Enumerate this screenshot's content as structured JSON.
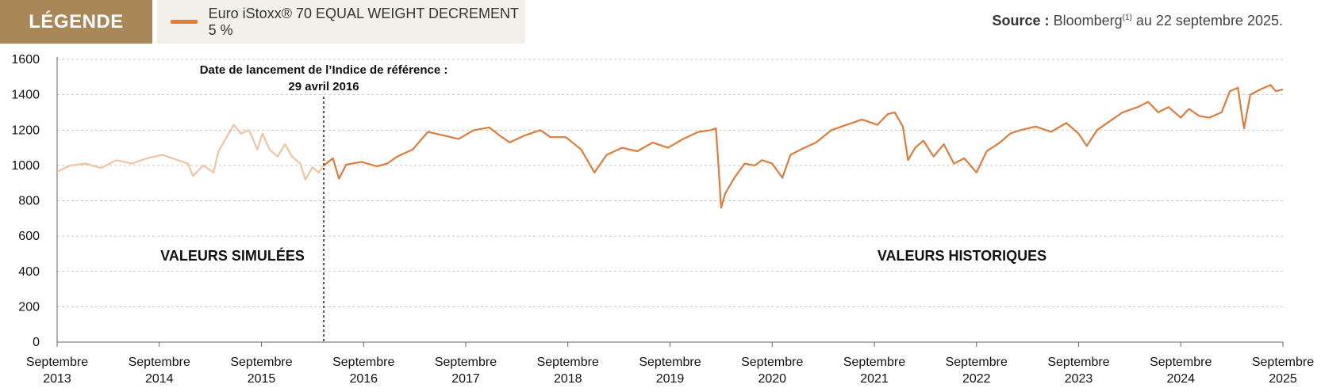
{
  "legend": {
    "tag": "LÉGENDE",
    "series_label": "Euro iStoxx® 70 EQUAL WEIGHT DECREMENT 5 %"
  },
  "source": {
    "bold": "Source :",
    "text_before": "Bloomberg",
    "sup": "(1)",
    "text_after": "au 22 septembre 2025."
  },
  "annotation": {
    "line1": "Date de lancement de l’Indice de référence :",
    "line2": "29 avril 2016"
  },
  "regions": {
    "simulated": "VALEURS SIMULÉES",
    "historical": "VALEURS HISTORIQUES"
  },
  "colors": {
    "historical": "#e07b39",
    "simulated": "#f3c3a0",
    "grid": "#b5b5b5",
    "legend_tag_bg": "#a98759",
    "legend_box_bg": "#f3f0ea"
  },
  "chart_data": {
    "type": "line",
    "title": "",
    "xlabel": "",
    "ylabel": "",
    "ylim": [
      0,
      1600
    ],
    "yticks": [
      0,
      200,
      400,
      600,
      800,
      1000,
      1200,
      1400,
      1600
    ],
    "xlim": [
      2013.72,
      2025.72
    ],
    "xticks": [
      {
        "x": 2013.72,
        "label": [
          "Septembre",
          "2013"
        ]
      },
      {
        "x": 2014.72,
        "label": [
          "Septembre",
          "2014"
        ]
      },
      {
        "x": 2015.72,
        "label": [
          "Septembre",
          "2015"
        ]
      },
      {
        "x": 2016.72,
        "label": [
          "Septembre",
          "2016"
        ]
      },
      {
        "x": 2017.72,
        "label": [
          "Septembre",
          "2017"
        ]
      },
      {
        "x": 2018.72,
        "label": [
          "Septembre",
          "2018"
        ]
      },
      {
        "x": 2019.72,
        "label": [
          "Septembre",
          "2019"
        ]
      },
      {
        "x": 2020.72,
        "label": [
          "Septembre",
          "2020"
        ]
      },
      {
        "x": 2021.72,
        "label": [
          "Septembre",
          "2021"
        ]
      },
      {
        "x": 2022.72,
        "label": [
          "Septembre",
          "2022"
        ]
      },
      {
        "x": 2023.72,
        "label": [
          "Septembre",
          "2023"
        ]
      },
      {
        "x": 2024.72,
        "label": [
          "Septembre",
          "2024"
        ]
      },
      {
        "x": 2025.72,
        "label": [
          "Septembre",
          "2025"
        ]
      }
    ],
    "grid": true,
    "launch_date_x": 2016.33,
    "series": [
      {
        "name": "simulated",
        "values": [
          [
            2013.72,
            965
          ],
          [
            2013.85,
            1000
          ],
          [
            2014.0,
            1010
          ],
          [
            2014.15,
            985
          ],
          [
            2014.3,
            1030
          ],
          [
            2014.45,
            1010
          ],
          [
            2014.6,
            1040
          ],
          [
            2014.75,
            1060
          ],
          [
            2014.9,
            1030
          ],
          [
            2015.0,
            1010
          ],
          [
            2015.05,
            940
          ],
          [
            2015.15,
            1000
          ],
          [
            2015.25,
            960
          ],
          [
            2015.3,
            1080
          ],
          [
            2015.38,
            1160
          ],
          [
            2015.45,
            1230
          ],
          [
            2015.52,
            1180
          ],
          [
            2015.6,
            1200
          ],
          [
            2015.68,
            1090
          ],
          [
            2015.73,
            1180
          ],
          [
            2015.8,
            1090
          ],
          [
            2015.88,
            1050
          ],
          [
            2015.95,
            1120
          ],
          [
            2016.02,
            1050
          ],
          [
            2016.1,
            1010
          ],
          [
            2016.15,
            920
          ],
          [
            2016.22,
            990
          ],
          [
            2016.28,
            960
          ],
          [
            2016.33,
            1000
          ]
        ]
      },
      {
        "name": "historical",
        "values": [
          [
            2016.33,
            1000
          ],
          [
            2016.42,
            1040
          ],
          [
            2016.48,
            925
          ],
          [
            2016.55,
            1005
          ],
          [
            2016.7,
            1020
          ],
          [
            2016.85,
            995
          ],
          [
            2016.95,
            1010
          ],
          [
            2017.05,
            1050
          ],
          [
            2017.2,
            1090
          ],
          [
            2017.35,
            1190
          ],
          [
            2017.5,
            1170
          ],
          [
            2017.65,
            1150
          ],
          [
            2017.8,
            1200
          ],
          [
            2017.95,
            1215
          ],
          [
            2018.05,
            1170
          ],
          [
            2018.15,
            1130
          ],
          [
            2018.3,
            1170
          ],
          [
            2018.45,
            1200
          ],
          [
            2018.55,
            1160
          ],
          [
            2018.7,
            1160
          ],
          [
            2018.85,
            1090
          ],
          [
            2018.98,
            960
          ],
          [
            2019.1,
            1060
          ],
          [
            2019.25,
            1100
          ],
          [
            2019.4,
            1080
          ],
          [
            2019.55,
            1130
          ],
          [
            2019.7,
            1100
          ],
          [
            2019.85,
            1150
          ],
          [
            2020.0,
            1190
          ],
          [
            2020.12,
            1200
          ],
          [
            2020.17,
            1210
          ],
          [
            2020.19,
            1040
          ],
          [
            2020.22,
            760
          ],
          [
            2020.26,
            840
          ],
          [
            2020.35,
            930
          ],
          [
            2020.45,
            1010
          ],
          [
            2020.55,
            1000
          ],
          [
            2020.62,
            1030
          ],
          [
            2020.72,
            1010
          ],
          [
            2020.82,
            930
          ],
          [
            2020.9,
            1060
          ],
          [
            2021.0,
            1090
          ],
          [
            2021.15,
            1130
          ],
          [
            2021.3,
            1200
          ],
          [
            2021.45,
            1230
          ],
          [
            2021.6,
            1260
          ],
          [
            2021.75,
            1230
          ],
          [
            2021.85,
            1290
          ],
          [
            2021.92,
            1300
          ],
          [
            2022.0,
            1220
          ],
          [
            2022.05,
            1030
          ],
          [
            2022.12,
            1100
          ],
          [
            2022.2,
            1140
          ],
          [
            2022.3,
            1050
          ],
          [
            2022.4,
            1120
          ],
          [
            2022.5,
            1010
          ],
          [
            2022.6,
            1040
          ],
          [
            2022.72,
            960
          ],
          [
            2022.82,
            1080
          ],
          [
            2022.95,
            1130
          ],
          [
            2023.05,
            1180
          ],
          [
            2023.15,
            1200
          ],
          [
            2023.3,
            1220
          ],
          [
            2023.45,
            1190
          ],
          [
            2023.6,
            1240
          ],
          [
            2023.72,
            1180
          ],
          [
            2023.8,
            1110
          ],
          [
            2023.9,
            1200
          ],
          [
            2024.0,
            1240
          ],
          [
            2024.15,
            1300
          ],
          [
            2024.3,
            1330
          ],
          [
            2024.4,
            1360
          ],
          [
            2024.5,
            1300
          ],
          [
            2024.6,
            1330
          ],
          [
            2024.72,
            1270
          ],
          [
            2024.8,
            1320
          ],
          [
            2024.9,
            1280
          ],
          [
            2025.0,
            1270
          ],
          [
            2025.12,
            1300
          ],
          [
            2025.2,
            1420
          ],
          [
            2025.28,
            1440
          ],
          [
            2025.32,
            1280
          ],
          [
            2025.34,
            1210
          ],
          [
            2025.4,
            1400
          ],
          [
            2025.5,
            1430
          ],
          [
            2025.6,
            1455
          ],
          [
            2025.65,
            1420
          ],
          [
            2025.72,
            1430
          ]
        ]
      }
    ]
  }
}
